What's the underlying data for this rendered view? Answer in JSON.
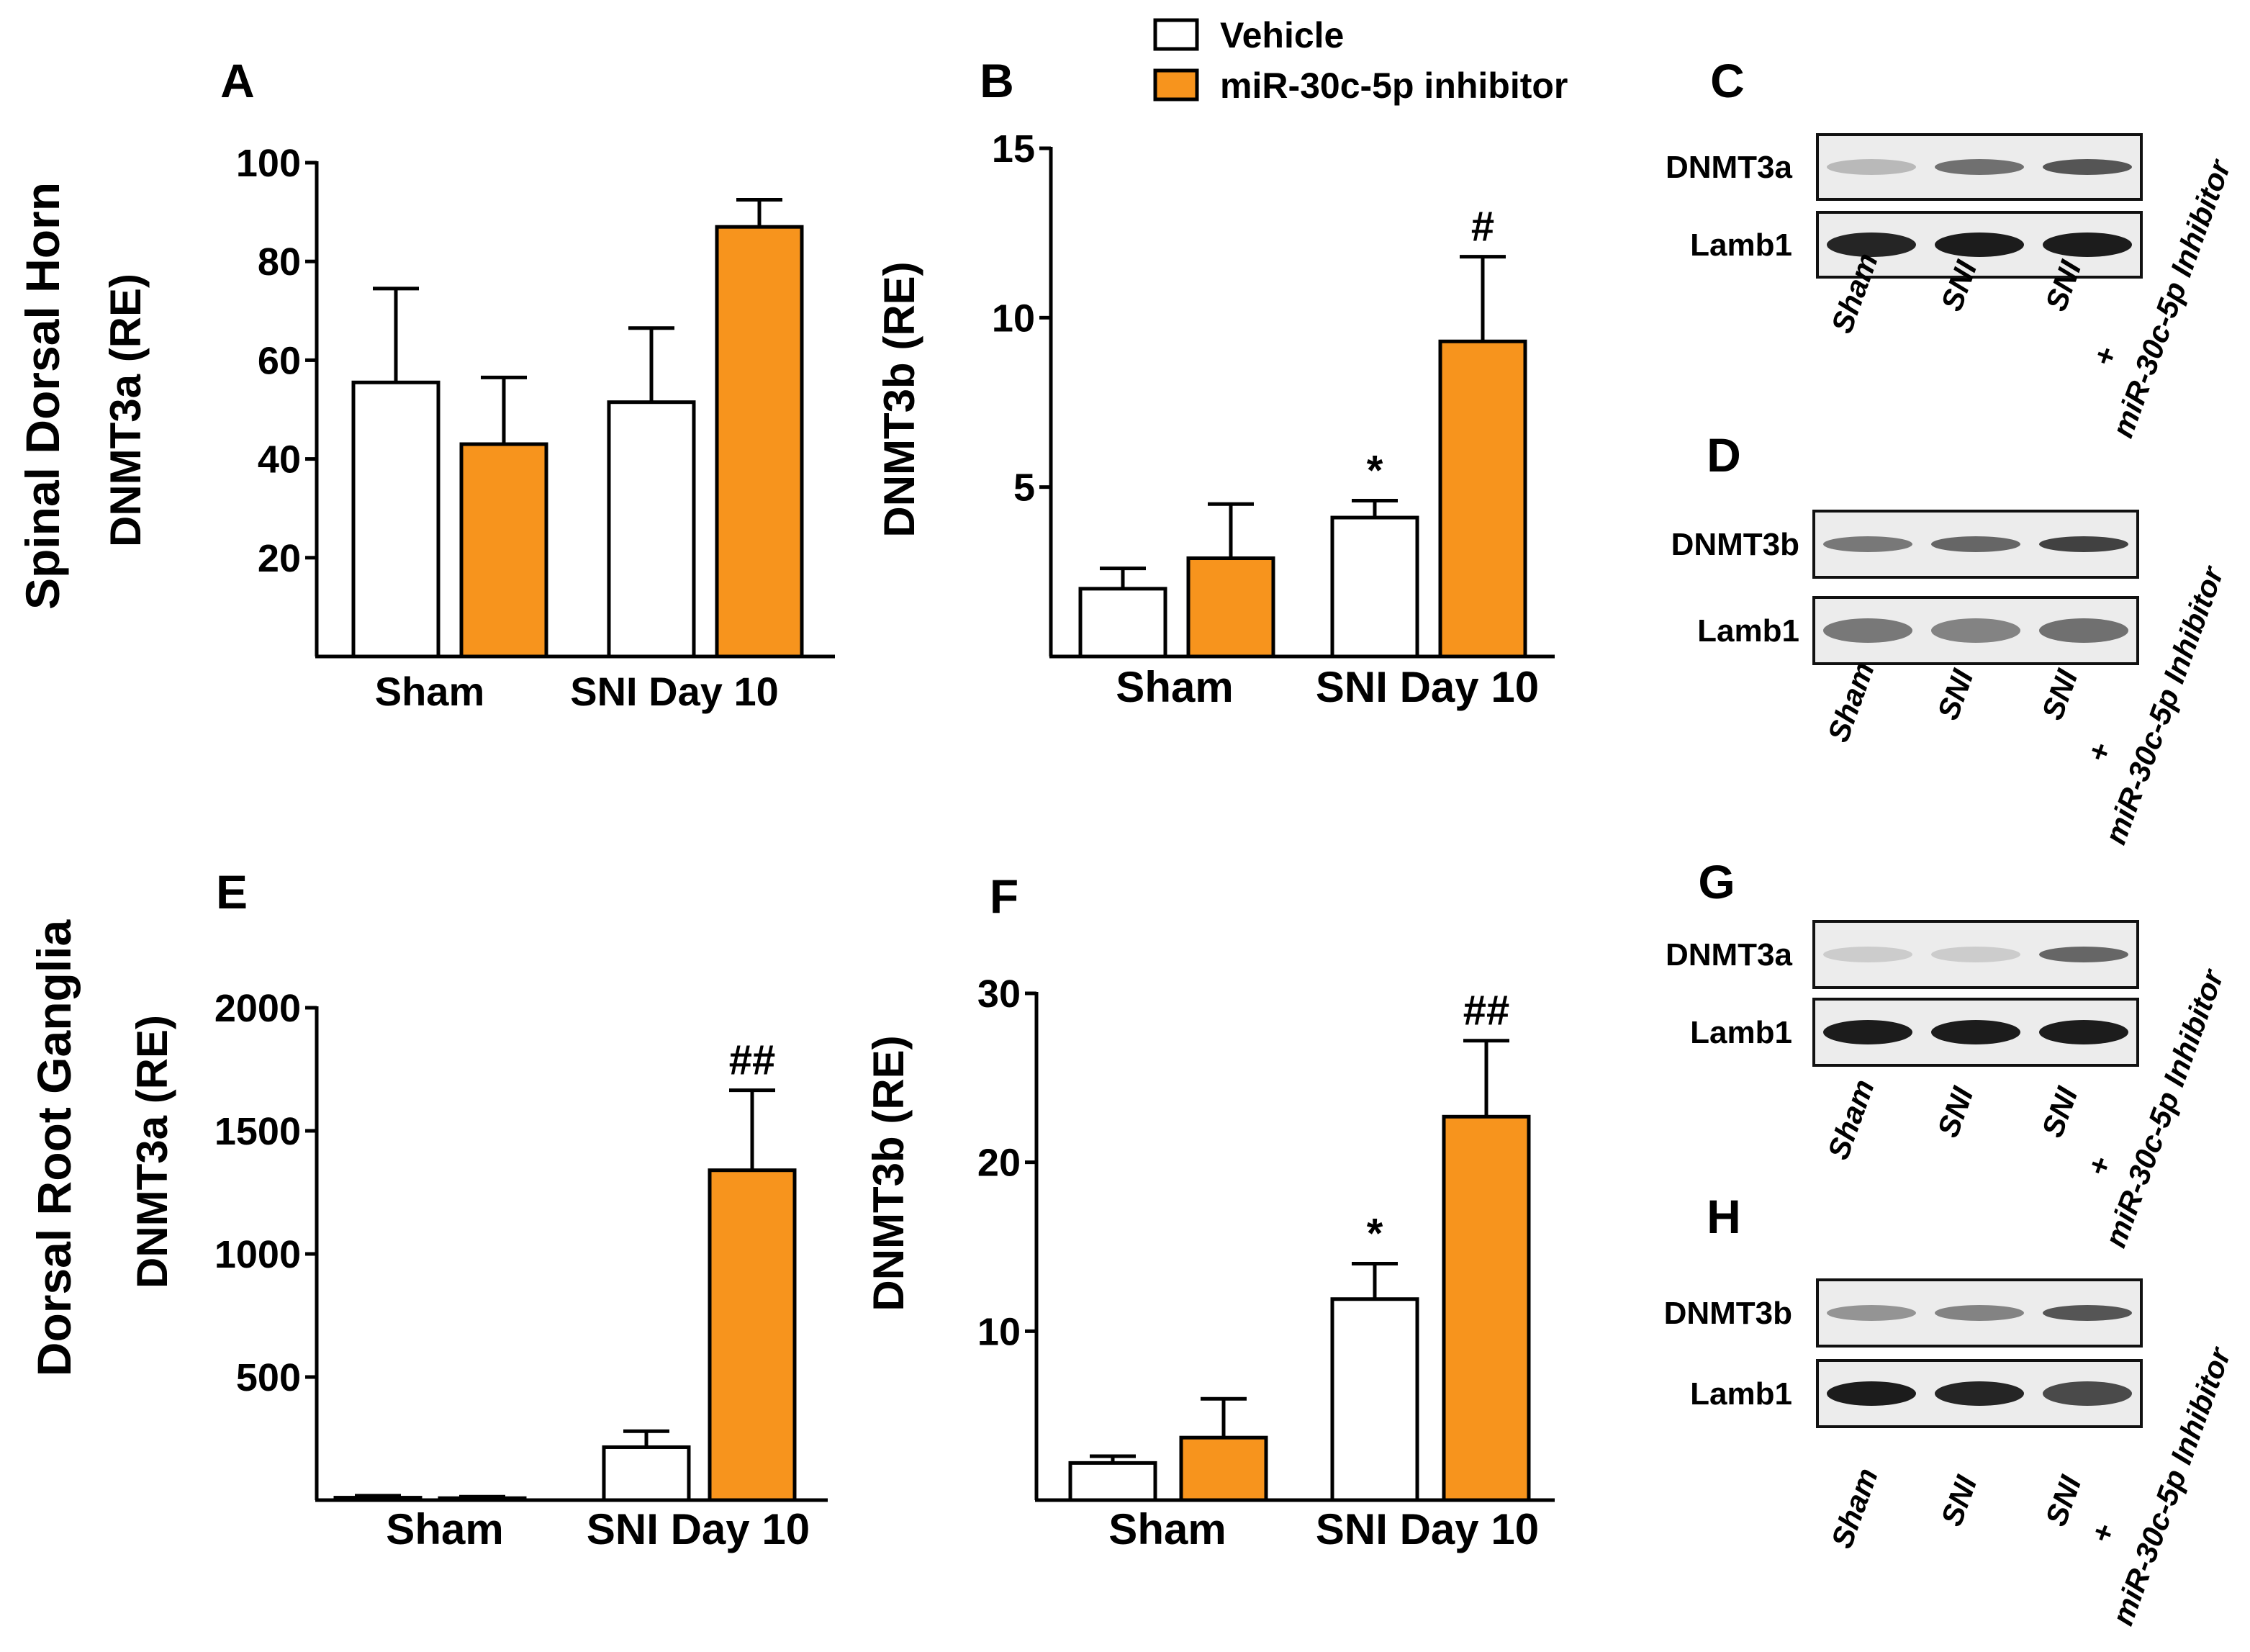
{
  "row_labels": [
    "Spinal Dorsal Horn",
    "Dorsal Root Ganglia"
  ],
  "legend": [
    {
      "name": "Vehicle",
      "color": "#ffffff"
    },
    {
      "name": "miR-30c-5p inhibitor",
      "color": "#f7941d"
    }
  ],
  "chart_data": [
    {
      "id": "A",
      "panel": "A",
      "type": "bar",
      "ylabel": "DNMT3a (RE)",
      "ylim": [
        0,
        100
      ],
      "yticks": [
        20,
        40,
        60,
        80,
        100
      ],
      "ytick_labels": [
        "20",
        "40",
        "60",
        "80",
        "100"
      ],
      "categories": [
        "Sham",
        "SNI Day 10"
      ],
      "series": [
        {
          "name": "Vehicle",
          "values": [
            55.5,
            51.5
          ],
          "errors": [
            19,
            15
          ]
        },
        {
          "name": "miR-30c-5p inhibitor",
          "values": [
            43,
            87
          ],
          "errors": [
            13.5,
            5.5
          ]
        }
      ],
      "annotations": []
    },
    {
      "id": "B",
      "panel": "B",
      "type": "bar",
      "ylabel": "DNMT3b (RE)",
      "ylim": [
        0,
        15
      ],
      "yticks": [
        5,
        10,
        15
      ],
      "ytick_labels": [
        "5",
        "10",
        "15"
      ],
      "categories": [
        "Sham",
        "SNI Day 10"
      ],
      "series": [
        {
          "name": "Vehicle",
          "values": [
            2.0,
            4.1
          ],
          "errors": [
            0.6,
            0.5
          ]
        },
        {
          "name": "miR-30c-5p inhibitor",
          "values": [
            2.9,
            9.3
          ],
          "errors": [
            1.6,
            2.5
          ]
        }
      ],
      "annotations": [
        {
          "text": "*",
          "category": 1,
          "series": 0
        },
        {
          "text": "#",
          "category": 1,
          "series": 1
        }
      ]
    },
    {
      "id": "E",
      "panel": "E",
      "type": "bar",
      "ylabel": "DNMT3a (RE)",
      "ylim": [
        0,
        2000
      ],
      "yticks": [
        500,
        1000,
        1500,
        2000
      ],
      "ytick_labels": [
        "500",
        "1000",
        "1500",
        "2000"
      ],
      "categories": [
        "Sham",
        "SNI Day 10"
      ],
      "series": [
        {
          "name": "Vehicle",
          "values": [
            10,
            215
          ],
          "errors": [
            8,
            65
          ]
        },
        {
          "name": "miR-30c-5p inhibitor",
          "values": [
            8,
            1340
          ],
          "errors": [
            6,
            325
          ]
        }
      ],
      "annotations": [
        {
          "text": "##",
          "category": 1,
          "series": 1
        }
      ]
    },
    {
      "id": "F",
      "panel": "F",
      "type": "bar",
      "ylabel": "DNMT3b (RE)",
      "ylim": [
        0,
        30
      ],
      "yticks": [
        10,
        20,
        30
      ],
      "ytick_labels": [
        "10",
        "20",
        "30"
      ],
      "categories": [
        "Sham",
        "SNI Day 10"
      ],
      "series": [
        {
          "name": "Vehicle",
          "values": [
            2.2,
            11.9
          ],
          "errors": [
            0.4,
            2.1
          ]
        },
        {
          "name": "miR-30c-5p inhibitor",
          "values": [
            3.7,
            22.7
          ],
          "errors": [
            2.3,
            4.5
          ]
        }
      ],
      "annotations": [
        {
          "text": "*",
          "category": 1,
          "series": 0
        },
        {
          "text": "##",
          "category": 1,
          "series": 1
        }
      ]
    }
  ],
  "blots": [
    {
      "id": "C",
      "panel": "C",
      "rows": [
        "DNMT3a",
        "Lamb1"
      ],
      "lanes": [
        "Sham",
        "SNI",
        "SNI",
        "+",
        "miR-30c-5p Inhibitor"
      ],
      "band_intensity": [
        [
          0.15,
          0.55,
          0.7
        ],
        [
          0.95,
          1.0,
          1.0
        ]
      ]
    },
    {
      "id": "D",
      "panel": "D",
      "rows": [
        "DNMT3b",
        "Lamb1"
      ],
      "lanes": [
        "Sham",
        "SNI",
        "SNI",
        "+",
        "miR-30c-5p Inhibitor"
      ],
      "band_intensity": [
        [
          0.5,
          0.6,
          0.8
        ],
        [
          0.5,
          0.45,
          0.55
        ]
      ]
    },
    {
      "id": "G",
      "panel": "G",
      "rows": [
        "DNMT3a",
        "Lamb1"
      ],
      "lanes": [
        "Sham",
        "SNI",
        "SNI",
        "+",
        "miR-30c-5p Inhibitor"
      ],
      "band_intensity": [
        [
          0.05,
          0.05,
          0.6
        ],
        [
          1.0,
          1.0,
          1.0
        ]
      ]
    },
    {
      "id": "H",
      "panel": "H",
      "rows": [
        "DNMT3b",
        "Lamb1"
      ],
      "lanes": [
        "Sham",
        "SNI",
        "SNI",
        "+",
        "miR-30c-5p Inhibitor"
      ],
      "band_intensity": [
        [
          0.35,
          0.45,
          0.7
        ],
        [
          1.0,
          0.95,
          0.75
        ]
      ]
    }
  ]
}
